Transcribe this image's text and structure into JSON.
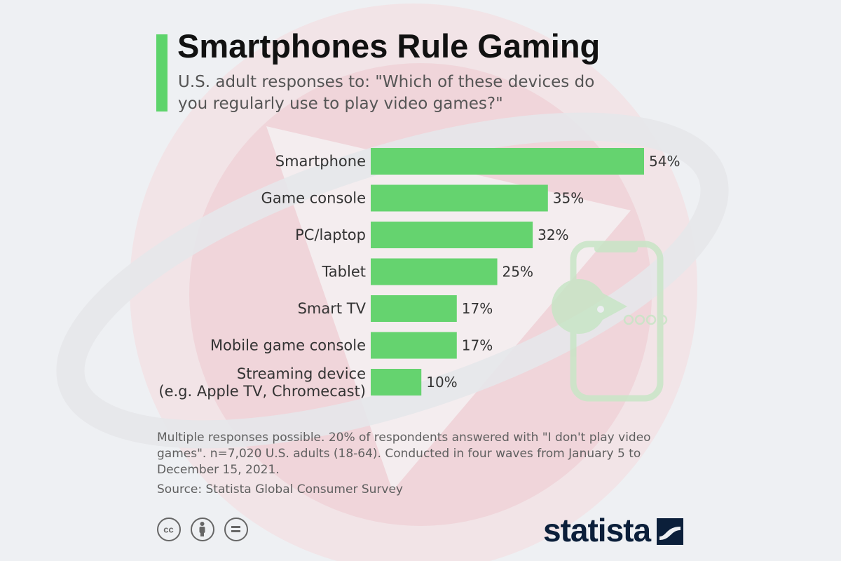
{
  "header": {
    "title": "Smartphones Rule Gaming",
    "subtitle": "U.S. adult responses to: \"Which of these devices do you regularly use to play video games?\""
  },
  "chart_data": {
    "type": "bar",
    "orientation": "horizontal",
    "categories": [
      "Smartphone",
      "Game console",
      "PC/laptop",
      "Tablet",
      "Smart TV",
      "Mobile game console",
      "Streaming device\n(e.g. Apple TV, Chromecast)"
    ],
    "values": [
      54,
      35,
      32,
      25,
      17,
      17,
      10
    ],
    "value_suffix": "%",
    "title": "Smartphones Rule Gaming",
    "grid": false,
    "legend": false
  },
  "footer": {
    "note": "Multiple responses possible. 20% of respondents answered with \"I don't play video games\". n=7,020 U.S. adults (18-64). Conducted in four waves from January 5 to December 15, 2021.",
    "source": "Source: Statista Global Consumer Survey",
    "licenses": [
      "cc-icon",
      "attribution-icon",
      "no-derivatives-icon"
    ],
    "logo": "statista"
  },
  "colors": {
    "accent": "#5dd46b",
    "bar": "#65d36f",
    "title": "#111111",
    "text": "#333333",
    "logo": "#0b1f3a"
  }
}
